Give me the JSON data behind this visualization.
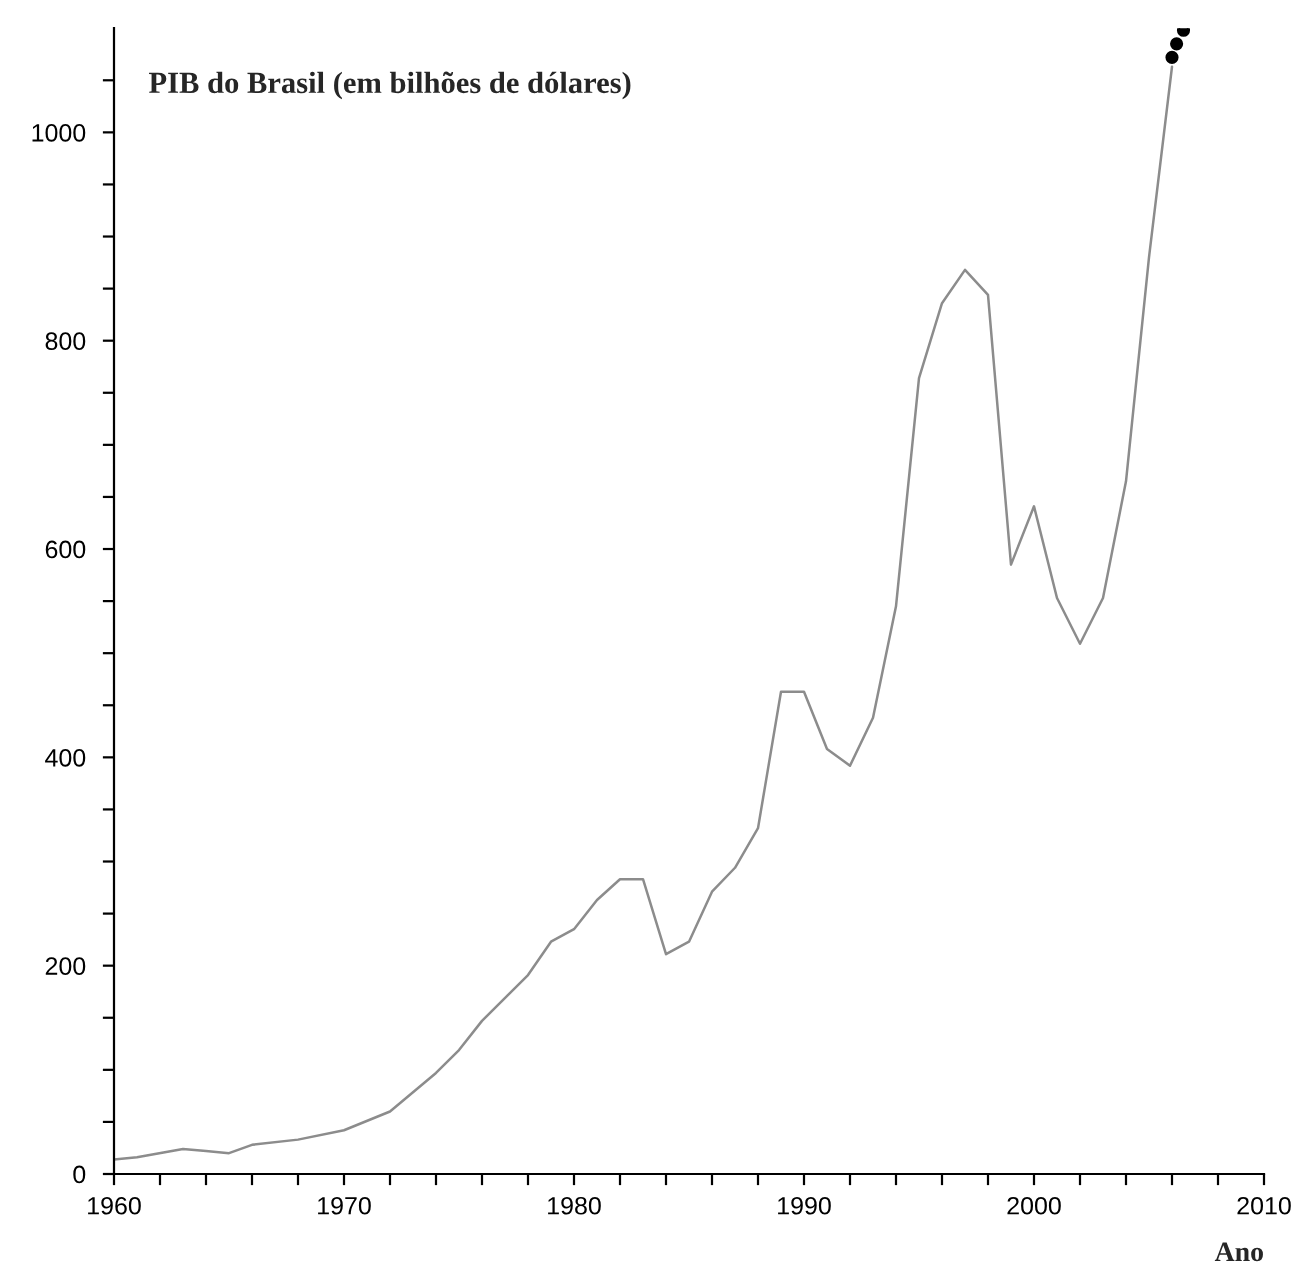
{
  "chart_data": {
    "type": "line",
    "title": "PIB do Brasil (em bilhões de dólares)",
    "xlabel": "Ano",
    "xlim": [
      1960,
      2010
    ],
    "ylim": [
      0,
      1100
    ],
    "xticks": [
      1960,
      {
        "value": 1962,
        "label": null
      },
      {
        "value": 1964,
        "label": null
      },
      {
        "value": 1966,
        "label": null
      },
      {
        "value": 1968,
        "label": null
      },
      1970,
      {
        "value": 1972,
        "label": null
      },
      {
        "value": 1974,
        "label": null
      },
      {
        "value": 1976,
        "label": null
      },
      {
        "value": 1978,
        "label": null
      },
      1980,
      {
        "value": 1982,
        "label": null
      },
      {
        "value": 1984,
        "label": null
      },
      {
        "value": 1986,
        "label": null
      },
      {
        "value": 1988,
        "label": null
      },
      1990,
      {
        "value": 1992,
        "label": null
      },
      {
        "value": 1994,
        "label": null
      },
      {
        "value": 1996,
        "label": null
      },
      {
        "value": 1998,
        "label": null
      },
      2000,
      {
        "value": 2002,
        "label": null
      },
      {
        "value": 2004,
        "label": null
      },
      {
        "value": 2006,
        "label": null
      },
      {
        "value": 2008,
        "label": null
      },
      2010
    ],
    "yticks": [
      0,
      {
        "value": 50,
        "label": null
      },
      {
        "value": 100,
        "label": null
      },
      {
        "value": 150,
        "label": null
      },
      200,
      {
        "value": 250,
        "label": null
      },
      {
        "value": 300,
        "label": null
      },
      {
        "value": 350,
        "label": null
      },
      400,
      {
        "value": 450,
        "label": null
      },
      {
        "value": 500,
        "label": null
      },
      {
        "value": 550,
        "label": null
      },
      600,
      {
        "value": 650,
        "label": null
      },
      {
        "value": 700,
        "label": null
      },
      {
        "value": 750,
        "label": null
      },
      800,
      {
        "value": 850,
        "label": null
      },
      {
        "value": 900,
        "label": null
      },
      {
        "value": 950,
        "label": null
      },
      1000,
      {
        "value": 1050,
        "label": null
      }
    ],
    "grid": false,
    "legend": false,
    "series": [
      {
        "color": "#8c8c8c",
        "x": [
          1960,
          1961,
          1963,
          1964,
          1965,
          1966,
          1968,
          1970,
          1972,
          1974,
          1975,
          1976,
          1978,
          1979,
          1980,
          1981,
          1982,
          1983,
          1984,
          1985,
          1986,
          1987,
          1988,
          1989,
          1990,
          1991,
          1992,
          1993,
          1994,
          1995,
          1996,
          1997,
          1998,
          1999,
          2000,
          2001,
          2002,
          2003,
          2004,
          2005,
          2006
        ],
        "values": [
          14,
          16,
          24,
          22,
          20,
          28,
          33,
          42,
          60,
          97,
          119,
          147,
          191,
          223,
          235,
          263,
          283,
          283,
          211,
          223,
          271,
          294,
          332,
          463,
          463,
          408,
          392,
          438,
          545,
          764,
          836,
          868,
          844,
          585,
          641,
          553,
          509,
          553,
          665,
          880,
          1063
        ]
      },
      {
        "type": "scatter",
        "color": "#000000",
        "marker": "circle",
        "x": [
          2006.0,
          2006.2,
          2006.5
        ],
        "values": [
          1072,
          1085,
          1098
        ]
      }
    ]
  }
}
